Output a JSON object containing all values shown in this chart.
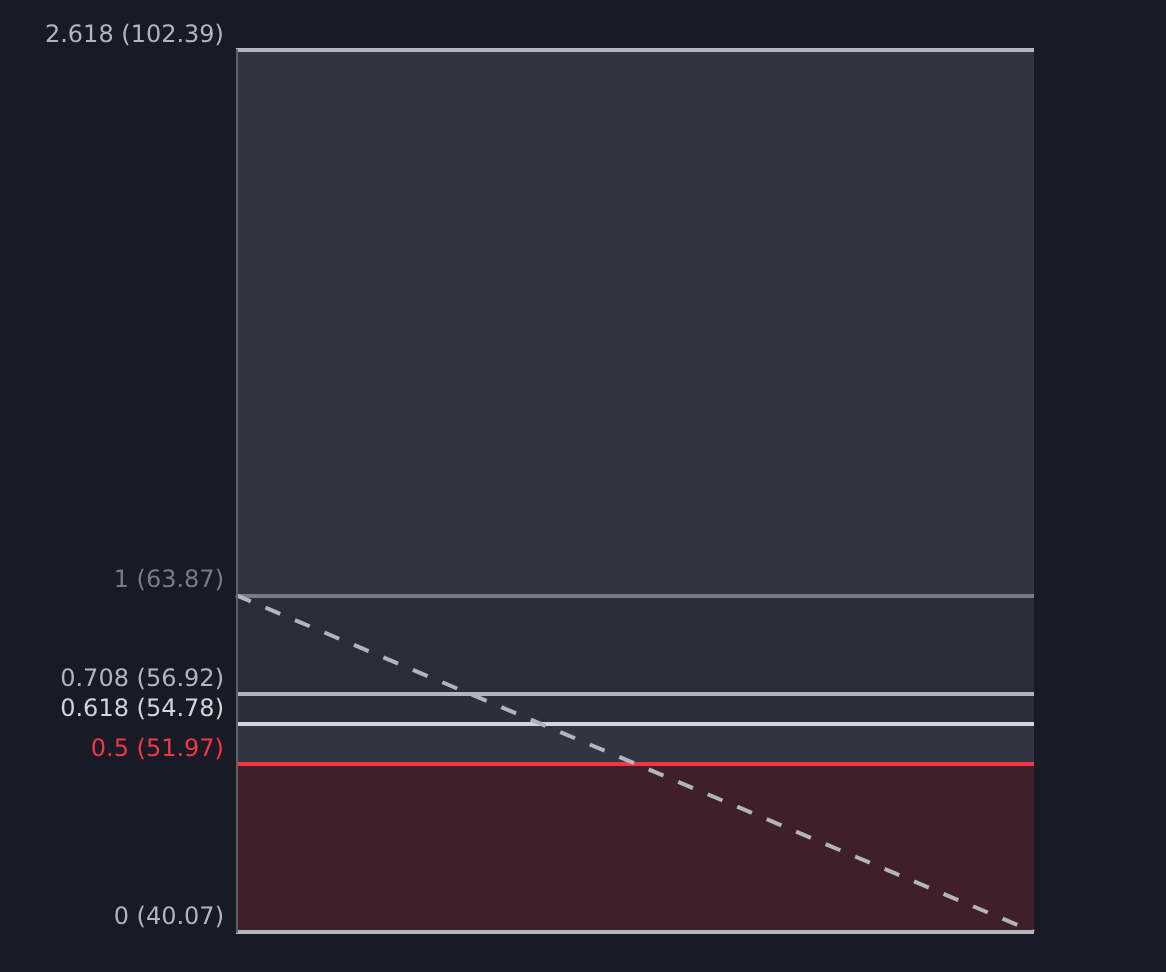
{
  "chart_data": {
    "type": "line",
    "categories": [
      null,
      null
    ],
    "series": [
      {
        "color": "#b2b5be",
        "values": [
          63.87,
          40.07
        ]
      }
    ],
    "line_style": "dashed",
    "marker": "none",
    "ylim": [
      40.07,
      102.39
    ],
    "ref_lines": [
      {
        "axis": "y",
        "value": 102.39,
        "label": "2.618 (102.39)",
        "color": "#b2b5be"
      },
      {
        "axis": "y",
        "value": 63.87,
        "label": "1 (63.87)",
        "color": "#787b86"
      },
      {
        "axis": "y",
        "value": 56.92,
        "label": "0.708 (56.92)",
        "color": "#b2b5be"
      },
      {
        "axis": "y",
        "value": 54.78,
        "label": "0.618 (54.78)",
        "color": "#d1d4dc"
      },
      {
        "axis": "y",
        "value": 51.97,
        "label": "0.5 (51.97)",
        "color": "#f23645"
      },
      {
        "axis": "y",
        "value": 40.07,
        "label": "0 (40.07)",
        "color": "#b2b5be"
      }
    ],
    "bands": [
      {
        "axis": "y",
        "from": 63.87,
        "to": 102.39,
        "color": "#32353f"
      },
      {
        "axis": "y",
        "from": 56.92,
        "to": 63.87,
        "color": "#2a2d37"
      },
      {
        "axis": "y",
        "from": 54.78,
        "to": 56.92,
        "color": "#2c2f39"
      },
      {
        "axis": "y",
        "from": 51.97,
        "to": 54.78,
        "color": "#32353f"
      },
      {
        "axis": "y",
        "from": 40.07,
        "to": 51.97,
        "color": "#3f1f2a"
      }
    ]
  }
}
